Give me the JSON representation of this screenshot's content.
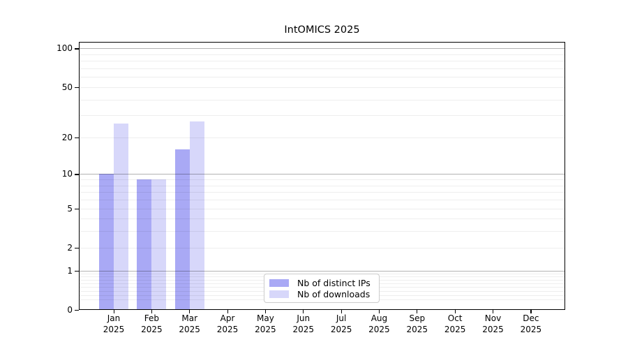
{
  "chart_data": {
    "type": "bar",
    "title": "IntOMICS 2025",
    "categories": [
      "Jan 2025",
      "Feb 2025",
      "Mar 2025",
      "Apr 2025",
      "May 2025",
      "Jun 2025",
      "Jul 2025",
      "Aug 2025",
      "Sep 2025",
      "Oct 2025",
      "Nov 2025",
      "Dec 2025"
    ],
    "month_labels": [
      "Jan",
      "Feb",
      "Mar",
      "Apr",
      "May",
      "Jun",
      "Jul",
      "Aug",
      "Sep",
      "Oct",
      "Nov",
      "Dec"
    ],
    "year_label": "2025",
    "series": [
      {
        "name": "Nb of distinct IPs",
        "color": "#a9a9f5",
        "values": [
          10,
          9,
          16,
          0,
          0,
          0,
          0,
          0,
          0,
          0,
          0,
          0
        ]
      },
      {
        "name": "Nb of downloads",
        "color": "#d7d7fa",
        "values": [
          26,
          9,
          27,
          0,
          0,
          0,
          0,
          0,
          0,
          0,
          0,
          0
        ]
      }
    ],
    "yscale": "log1p",
    "ylim": [
      0,
      112
    ],
    "yticks": [
      0,
      1,
      2,
      5,
      10,
      20,
      50,
      100
    ],
    "grid": "major+minor horizontal",
    "legend_position": "lower center inside axes"
  }
}
